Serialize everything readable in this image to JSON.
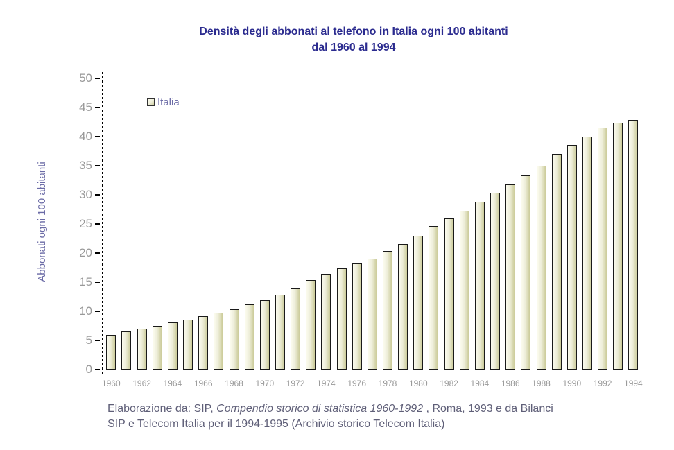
{
  "title": {
    "line1": "Densità degli abbonati al telefono in Italia ogni 100 abitanti",
    "line2": "dal 1960 al 1994"
  },
  "legend": {
    "label": "Italia"
  },
  "y_axis": {
    "title": "Abbonati ogni 100 abitanti",
    "ticks": [
      0,
      5,
      10,
      15,
      20,
      25,
      30,
      35,
      40,
      45,
      50
    ]
  },
  "x_axis": {
    "labels": [
      "1960",
      "1962",
      "1964",
      "1966",
      "1968",
      "1970",
      "1972",
      "1974",
      "1976",
      "1978",
      "1980",
      "1982",
      "1984",
      "1986",
      "1988",
      "1990",
      "1992",
      "1994"
    ]
  },
  "caption": {
    "line1_part1": "Elaborazione da: SIP, ",
    "line1_italic": "Compendio storico di statistica 1960-1992",
    "line1_part2": " , Roma, 1993 e da Bilanci",
    "line2": "SIP e Telecom Italia per il 1994-1995 (Archivio storico Telecom Italia)"
  },
  "colors": {
    "title_color": "#2b2b8f",
    "axis_title_color": "#6b6ba6",
    "tick_label_color": "#999999",
    "caption_color": "#5f5f78",
    "axis_line_color": "#000000",
    "bar_border_color": "#1a1a1a",
    "bar_fill_light": "#fbfbee",
    "bar_fill_mid": "#eeeeda",
    "bar_fill_dark": "#cbcb99"
  },
  "chart_data": {
    "type": "bar",
    "title": "Densità degli abbonati al telefono in Italia ogni 100 abitanti dal 1960 al 1994",
    "xlabel": "",
    "ylabel": "Abbonati ogni 100 abitanti",
    "ylim": [
      0,
      50
    ],
    "grid": false,
    "legend_entries": [
      "Italia"
    ],
    "legend_position": "upper-left-inside",
    "x_tick_step": 2,
    "categories": [
      1960,
      1961,
      1962,
      1963,
      1964,
      1965,
      1966,
      1967,
      1968,
      1969,
      1970,
      1971,
      1972,
      1973,
      1974,
      1975,
      1976,
      1977,
      1978,
      1979,
      1980,
      1981,
      1982,
      1983,
      1984,
      1985,
      1986,
      1987,
      1988,
      1989,
      1990,
      1991,
      1992,
      1993,
      1994
    ],
    "values": [
      6.0,
      6.5,
      7.0,
      7.5,
      8.1,
      8.6,
      9.2,
      9.8,
      10.4,
      11.2,
      11.9,
      12.9,
      13.9,
      15.4,
      16.4,
      17.4,
      18.2,
      19.1,
      20.3,
      21.6,
      23.0,
      24.6,
      25.9,
      27.3,
      28.8,
      30.3,
      31.8,
      33.3,
      35.0,
      37.0,
      38.6,
      40.0,
      41.6,
      42.4,
      42.9
    ]
  }
}
